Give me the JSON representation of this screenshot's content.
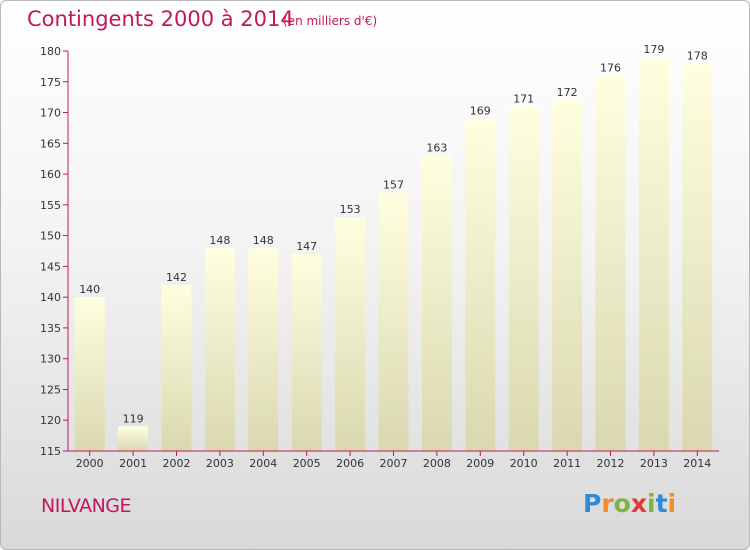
{
  "header": {
    "title": "Contingents 2000 à 2014",
    "subtitle": "(en milliers d'€)"
  },
  "footer": {
    "commune": "NILVANGE",
    "logo_letters": [
      "P",
      "r",
      "o",
      "x",
      "i",
      "t",
      "i"
    ],
    "logo_colors": [
      "#2e8bd8",
      "#f28c28",
      "#7cb342",
      "#e53935",
      "#7cb342",
      "#2e8bd8",
      "#f28c28"
    ]
  },
  "chart_data": {
    "type": "bar",
    "title": "Contingents 2000 à 2014",
    "subtitle": "(en milliers d'€)",
    "categories": [
      "2000",
      "2001",
      "2002",
      "2003",
      "2004",
      "2005",
      "2006",
      "2007",
      "2008",
      "2009",
      "2010",
      "2011",
      "2012",
      "2013",
      "2014"
    ],
    "values": [
      140,
      119,
      142,
      148,
      148,
      147,
      153,
      157,
      163,
      169,
      171,
      172,
      176,
      179,
      178
    ],
    "xlabel": "",
    "ylabel": "",
    "ylim": [
      115,
      180
    ],
    "yticks": [
      115,
      120,
      125,
      130,
      135,
      140,
      145,
      150,
      155,
      160,
      165,
      170,
      175,
      180
    ],
    "grid": false,
    "bar_color_top": "#ffffe0",
    "bar_color_bottom": "#d9d8b0",
    "axis_color": "#c2185b"
  }
}
